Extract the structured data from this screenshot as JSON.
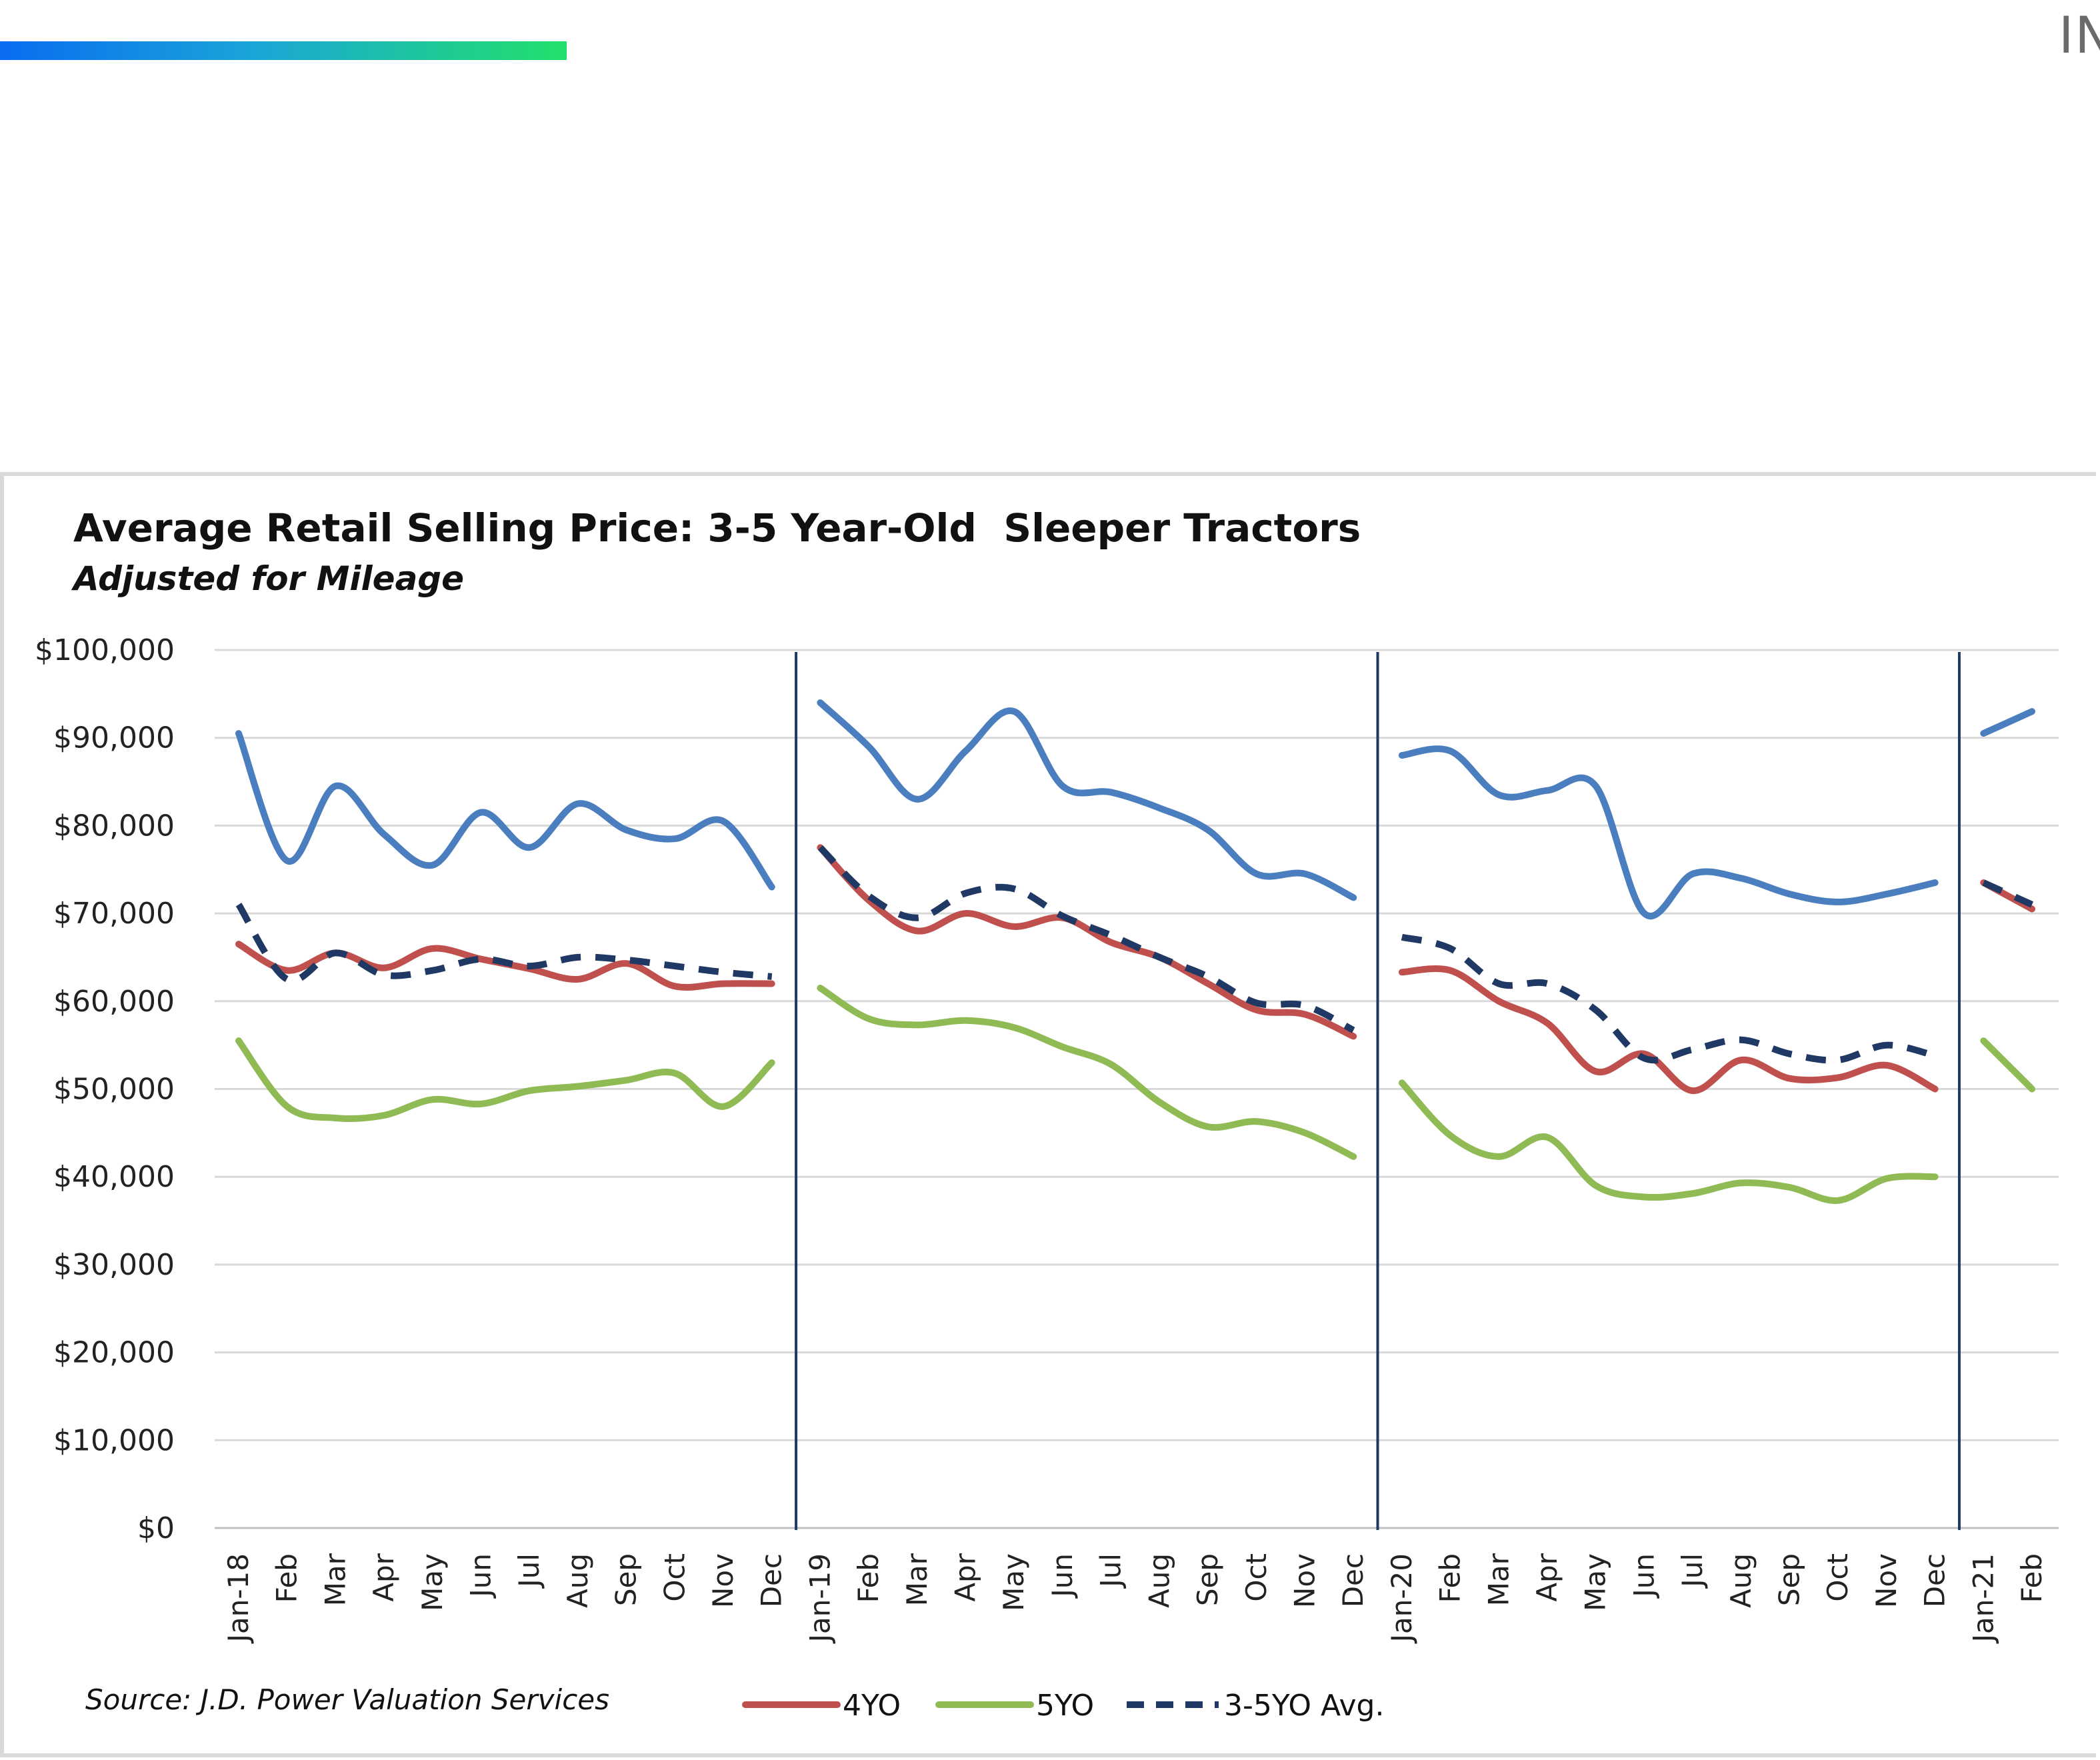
{
  "header": {
    "corner_text": "IN",
    "accent_colors": [
      "#0a6cf0",
      "#22e06a"
    ]
  },
  "chart_data": {
    "type": "line",
    "title": "Average Retail Selling Price: 3-5 Year-Old  Sleeper Tractors",
    "subtitle": "Adjusted for Mileage",
    "source": "Source: J.D. Power Valuation Services",
    "ylim": [
      0,
      100000
    ],
    "yticks": [
      0,
      10000,
      20000,
      30000,
      40000,
      50000,
      60000,
      70000,
      80000,
      90000,
      100000
    ],
    "ytick_labels": [
      "$0",
      "$10,000",
      "$20,000",
      "$30,000",
      "$40,000",
      "$50,000",
      "$60,000",
      "$70,000",
      "$80,000",
      "$90,000",
      "$100,000"
    ],
    "grid": true,
    "legend_position": "bottom",
    "categories": [
      "Jan-18",
      "Feb",
      "Mar",
      "Apr",
      "May",
      "Jun",
      "Jul",
      "Aug",
      "Sep",
      "Oct",
      "Nov",
      "Dec",
      "Jan-19",
      "Feb",
      "Mar",
      "Apr",
      "May",
      "Jun",
      "Jul",
      "Aug",
      "Sep",
      "Oct",
      "Nov",
      "Dec",
      "Jan-20",
      "Feb",
      "Mar",
      "Apr",
      "May",
      "Jun",
      "Jul",
      "Aug",
      "Sep",
      "Oct",
      "Nov",
      "Dec",
      "Jan-21",
      "Feb"
    ],
    "year_breaks_after": [
      "Dec",
      "Dec",
      "Dec"
    ],
    "segments": [
      [
        0,
        11
      ],
      [
        12,
        23
      ],
      [
        24,
        35
      ],
      [
        36,
        37
      ]
    ],
    "series": [
      {
        "name": "",
        "color": "#4a7ebf",
        "dash": "none",
        "in_legend": false,
        "values": [
          90500,
          76000,
          84500,
          79000,
          75500,
          81500,
          77500,
          82500,
          79500,
          78500,
          80500,
          73000,
          94000,
          89000,
          83000,
          88500,
          93000,
          84500,
          83800,
          82000,
          79500,
          74500,
          74500,
          71800,
          88000,
          88500,
          83500,
          84000,
          84500,
          70000,
          74500,
          74000,
          72200,
          71300,
          72200,
          73500,
          90500,
          93000
        ]
      },
      {
        "name": "4YO",
        "color": "#c0504d",
        "dash": "none",
        "in_legend": true,
        "values": [
          66500,
          63500,
          65500,
          63800,
          66000,
          64800,
          63700,
          62500,
          64300,
          61700,
          62000,
          62000,
          77500,
          71500,
          68000,
          70000,
          68500,
          69500,
          66700,
          65000,
          62000,
          59000,
          58500,
          56000,
          63300,
          63500,
          60000,
          57500,
          52000,
          54000,
          49800,
          53300,
          51200,
          51300,
          52700,
          50000,
          73500,
          70500
        ]
      },
      {
        "name": "5YO",
        "color": "#8fba54",
        "dash": "none",
        "in_legend": true,
        "values": [
          55500,
          48000,
          46700,
          47000,
          48800,
          48300,
          49800,
          50300,
          51000,
          51800,
          48000,
          53000,
          61500,
          58000,
          57300,
          57800,
          57000,
          54800,
          52800,
          48500,
          45700,
          46300,
          45000,
          42300,
          50700,
          44700,
          42300,
          44500,
          39000,
          37700,
          38100,
          39300,
          38800,
          37300,
          39800,
          40000,
          55500,
          50000
        ]
      },
      {
        "name": "3-5YO Avg.",
        "color": "#1f3864",
        "dash": "dashed",
        "in_legend": true,
        "values": [
          71000,
          62500,
          65500,
          63000,
          63500,
          64800,
          64000,
          65000,
          64700,
          64000,
          63300,
          62800,
          77500,
          72000,
          69500,
          72300,
          72800,
          69700,
          67500,
          65000,
          62800,
          59800,
          59500,
          56700,
          67300,
          66000,
          62000,
          62000,
          59000,
          53500,
          54500,
          55600,
          54000,
          53300,
          55000,
          53800,
          73500,
          71000
        ]
      }
    ]
  }
}
